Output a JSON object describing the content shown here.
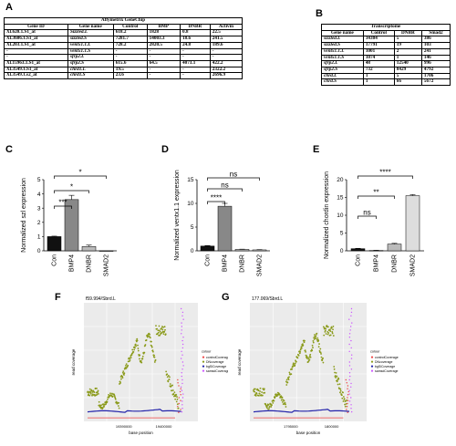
{
  "panels": {
    "A": "A",
    "B": "B",
    "C": "C",
    "D": "D",
    "E": "E",
    "F": "F",
    "G": "G"
  },
  "tableA": {
    "caption": "Affymetrix   GeneChip",
    "headers": [
      "Gene ID",
      "Gene name",
      "Control",
      "BMP",
      "DNBR",
      "Activin"
    ],
    "rows": [
      [
        "Xl.620.1.S1_at",
        "Sizzled.L",
        "618.2",
        "1828",
        "0.8",
        "22.5"
      ],
      [
        "Xl.3606.1.S1_at",
        "sizzled.S",
        "7281.7",
        "14003.3",
        "18.6",
        "241.5"
      ],
      [
        "Xl.203.1.S1_at",
        "ventx1.1.L",
        "728.2",
        "2820.5",
        "24.8",
        "189.6"
      ],
      [
        "-",
        "ventx1.1.S",
        "-",
        "-",
        "-",
        "-"
      ],
      [
        "-",
        "sfrp2.L",
        "-",
        "-",
        "-",
        "-"
      ],
      [
        "Xl.15963.1.S1_at",
        "sfrp2.S",
        "615.6",
        "64.5",
        "4073.1",
        "422.2"
      ],
      [
        "Xl.3549.1.S1_at",
        "chrd1.L",
        "19.5",
        "-",
        "-",
        "2322.2"
      ],
      [
        "Xl.3549.1.s2_at",
        "chrd1.S",
        "23.6",
        "-",
        "-",
        "2696.9"
      ]
    ]
  },
  "tableB": {
    "caption": "Transcriptome",
    "headers": [
      "Gene name",
      "Control",
      "DNBR",
      "Smad2"
    ],
    "rows": [
      [
        "sizzled.L",
        "34304",
        "5",
        "386"
      ],
      [
        "sizzled.S",
        "17791",
        "19",
        "103"
      ],
      [
        "ventx1.1.L",
        "1001",
        "2",
        "241"
      ],
      [
        "ventx1.1.S",
        "1074",
        "1",
        "146"
      ],
      [
        "sfrp2.L",
        "48",
        "12540",
        "996"
      ],
      [
        "sfrp2.S",
        "732",
        "8429",
        "4792"
      ],
      [
        "chrd.L",
        "1",
        "5",
        "1706"
      ],
      [
        "chrd.S",
        "1",
        "66",
        "5672"
      ]
    ]
  },
  "chart_data": [
    {
      "type": "bar",
      "panel": "C",
      "categories": [
        "Con",
        "BMP4",
        "DNBR",
        "SMAD2"
      ],
      "values": [
        1.0,
        3.6,
        0.3,
        0.0
      ],
      "errors": [
        0.03,
        0.3,
        0.1,
        0.0
      ],
      "ylabel": "Normalized szl expression",
      "ylim": [
        0,
        5
      ],
      "yticks": [
        "0",
        "1",
        "2",
        "3",
        "4",
        "5"
      ],
      "colors": [
        "#111111",
        "#888888",
        "#bbbbbb",
        "#dddddd"
      ],
      "significance": [
        "***",
        "*",
        "*"
      ]
    },
    {
      "type": "bar",
      "panel": "D",
      "categories": [
        "Con",
        "BMP4",
        "DNBR",
        "SMAD2"
      ],
      "values": [
        1.0,
        9.4,
        0.3,
        0.2
      ],
      "errors": [
        0.1,
        0.6,
        0.05,
        0.05
      ],
      "ylabel": "Normalized ventx1.1 expression",
      "ylim": [
        0,
        15
      ],
      "yticks": [
        "0",
        "5",
        "10",
        "15"
      ],
      "colors": [
        "#111111",
        "#888888",
        "#bbbbbb",
        "#dddddd"
      ],
      "significance": [
        "****",
        "ns",
        "ns"
      ]
    },
    {
      "type": "bar",
      "panel": "E",
      "categories": [
        "Con",
        "BMP4",
        "DNBR",
        "SMAD2"
      ],
      "values": [
        0.6,
        0.1,
        1.9,
        15.5
      ],
      "errors": [
        0.1,
        0.05,
        0.2,
        0.3
      ],
      "ylabel": "Normalized chordin expression",
      "ylim": [
        0,
        20
      ],
      "yticks": [
        "0",
        "5",
        "10",
        "15",
        "20"
      ],
      "colors": [
        "#111111",
        "#888888",
        "#bbbbbb",
        "#dddddd"
      ],
      "significance": [
        "ns",
        "**",
        "****"
      ]
    },
    {
      "type": "scatter",
      "panel": "F",
      "title": "f59.994/Sbrd.L",
      "xlabel": "base position",
      "ylabel": "read coverage",
      "xticks": [
        "19390000",
        "19400000"
      ],
      "legend_title": "colour",
      "legend": [
        "controlCoverage",
        "DNcoverage",
        "bgSiCoverage",
        "samsdCoverage"
      ],
      "legend_colors": [
        "#e44",
        "#8a9a1a",
        "#22a",
        "#c5f"
      ]
    },
    {
      "type": "scatter",
      "panel": "G",
      "title": "177.069/Sbrd.L",
      "xlabel": "base position",
      "ylabel": "read coverage",
      "xticks": [
        "1795000",
        "1800000"
      ],
      "legend_title": "colour",
      "legend": [
        "controlCoverage",
        "DNcoverage",
        "bgSiCoverage",
        "samsdCoverage"
      ],
      "legend_colors": [
        "#e44",
        "#8a9a1a",
        "#22a",
        "#c5f"
      ]
    }
  ]
}
